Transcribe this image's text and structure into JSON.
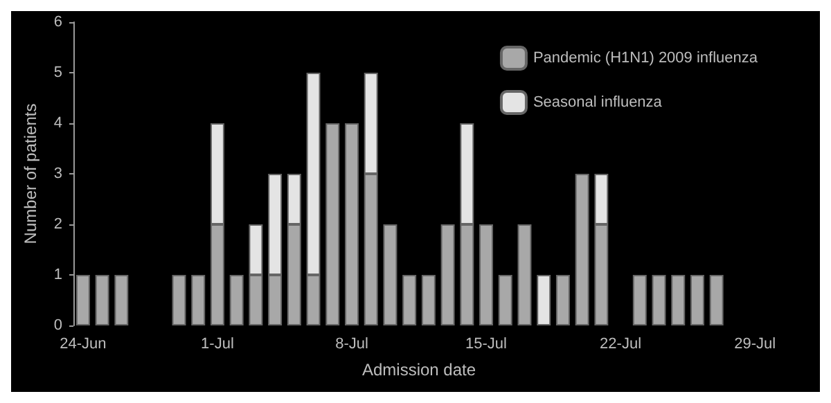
{
  "chart_data": {
    "type": "bar",
    "stacked": true,
    "xlabel": "Admission date",
    "ylabel": "Number of patients",
    "categories": [
      "24-Jun",
      null,
      null,
      null,
      null,
      null,
      null,
      "1-Jul",
      null,
      null,
      null,
      null,
      null,
      null,
      "8-Jul",
      null,
      null,
      null,
      null,
      null,
      null,
      "15-Jul",
      null,
      null,
      null,
      null,
      null,
      null,
      "22-Jul",
      null,
      null,
      null,
      null,
      null,
      null,
      "29-Jul"
    ],
    "series": [
      {
        "name": "Pandemic (H1N1) 2009 influenza",
        "color": "#a8a8a8",
        "values": [
          1,
          1,
          1,
          null,
          null,
          1,
          1,
          2,
          1,
          1,
          1,
          2,
          1,
          4,
          4,
          3,
          2,
          1,
          1,
          2,
          2,
          2,
          1,
          2,
          null,
          1,
          3,
          2,
          null,
          1,
          1,
          1,
          1,
          1,
          null,
          null
        ]
      },
      {
        "name": "Seasonal influenza",
        "color": "#e4e4e4",
        "values": [
          null,
          null,
          null,
          null,
          null,
          null,
          null,
          2,
          null,
          1,
          2,
          1,
          4,
          null,
          null,
          2,
          null,
          null,
          null,
          null,
          2,
          null,
          null,
          null,
          1,
          null,
          null,
          1,
          null,
          null,
          null,
          null,
          null,
          null,
          null,
          null
        ]
      }
    ],
    "ylim": [
      0,
      6
    ],
    "yticks": [
      0,
      1,
      2,
      3,
      4,
      5,
      6
    ],
    "grid": false,
    "legend": "top right"
  }
}
